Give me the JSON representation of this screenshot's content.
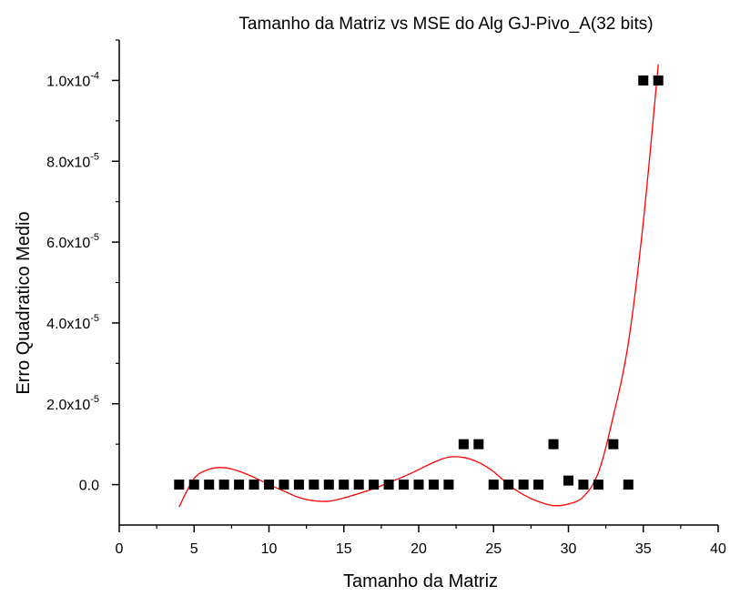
{
  "chart_data": {
    "type": "scatter",
    "title": "Tamanho da Matriz vs MSE do Alg GJ-Pivo_A(32 bits)",
    "xlabel": "Tamanho da Matriz",
    "ylabel": "Erro Quadratico Medio",
    "xlim": [
      0,
      40
    ],
    "ylim": [
      -1e-05,
      0.00011
    ],
    "x_ticks": [
      0,
      5,
      10,
      15,
      20,
      25,
      30,
      35,
      40
    ],
    "y_ticks": [
      {
        "value": 0,
        "mantissa": "0.0",
        "exponent": ""
      },
      {
        "value": 2e-05,
        "mantissa": "2.0x10",
        "exponent": "-5"
      },
      {
        "value": 4e-05,
        "mantissa": "4.0x10",
        "exponent": "-5"
      },
      {
        "value": 6e-05,
        "mantissa": "6.0x10",
        "exponent": "-5"
      },
      {
        "value": 8e-05,
        "mantissa": "8.0x10",
        "exponent": "-5"
      },
      {
        "value": 0.0001,
        "mantissa": "1.0x10",
        "exponent": "-4"
      }
    ],
    "grid": false,
    "legend": "none",
    "series": [
      {
        "marker": "square",
        "color": "#000000",
        "x": [
          4,
          5,
          6,
          7,
          8,
          9,
          10,
          11,
          12,
          13,
          14,
          15,
          16,
          17,
          18,
          19,
          20,
          21,
          22,
          23,
          24,
          25,
          26,
          27,
          28,
          29,
          30,
          31,
          32,
          33,
          34,
          35,
          36
        ],
        "y": [
          0,
          0,
          0,
          0,
          0,
          0,
          0,
          0,
          0,
          0,
          0,
          0,
          0,
          0,
          0,
          0,
          0,
          0,
          0,
          1e-05,
          1e-05,
          0,
          0,
          0,
          0,
          1e-05,
          1e-06,
          0,
          0,
          1e-05,
          0,
          0.0001,
          0.0001
        ]
      },
      {
        "type": "line",
        "color": "#ff0000",
        "x": [
          4,
          5,
          6,
          7,
          8,
          9,
          10,
          11,
          12,
          13,
          14,
          15,
          16,
          17,
          18,
          19,
          20,
          21,
          22,
          23,
          24,
          25,
          26,
          27,
          28,
          29,
          30,
          31,
          32,
          33,
          34,
          35,
          36
        ],
        "y": [
          -5.5e-06,
          1.5e-06,
          3.8e-06,
          4.2e-06,
          3.3e-06,
          1.8e-06,
          0,
          -1.6e-06,
          -3.2e-06,
          -4e-06,
          -4.1e-06,
          -3.3e-06,
          -2.2e-06,
          -1e-06,
          5e-07,
          2e-06,
          3.7e-06,
          5.5e-06,
          6.8e-06,
          6.7e-06,
          5.5e-06,
          3.2e-06,
          0,
          -2.5e-06,
          -4.2e-06,
          -5.2e-06,
          -4.8e-06,
          -3e-06,
          3e-06,
          1.7e-05,
          3.5e-05,
          6.5e-05,
          0.000104
        ]
      }
    ]
  }
}
